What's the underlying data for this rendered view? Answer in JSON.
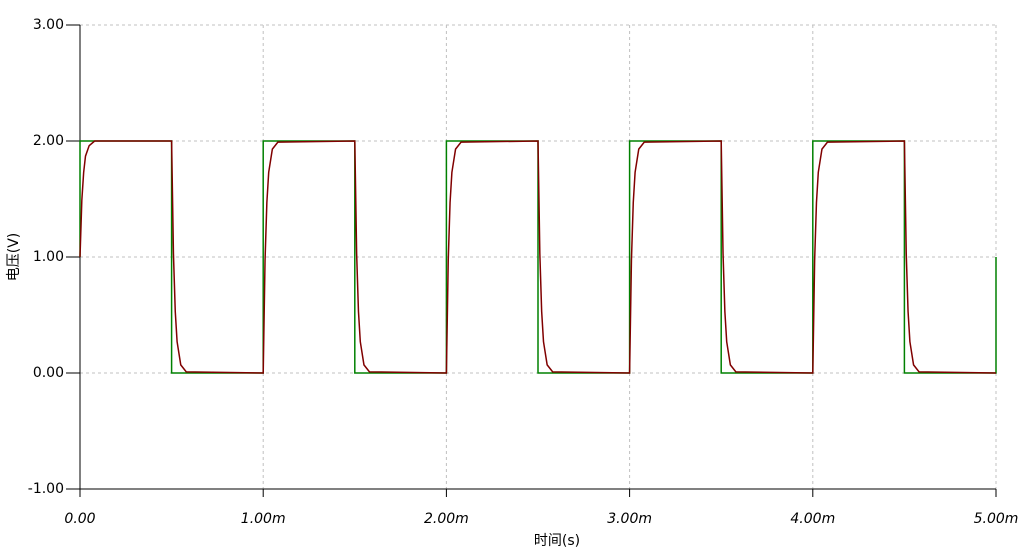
{
  "chart_data": {
    "type": "line",
    "xlabel": "时间(s)",
    "ylabel": "电压(V)",
    "xlim": [
      0,
      0.005
    ],
    "ylim": [
      -1,
      3
    ],
    "xticks": [
      {
        "value": 0,
        "label": "0.00"
      },
      {
        "value": 0.001,
        "label": "1.00m"
      },
      {
        "value": 0.002,
        "label": "2.00m"
      },
      {
        "value": 0.003,
        "label": "3.00m"
      },
      {
        "value": 0.004,
        "label": "4.00m"
      },
      {
        "value": 0.005,
        "label": "5.00m"
      }
    ],
    "yticks": [
      {
        "value": -1,
        "label": "-1.00"
      },
      {
        "value": 0,
        "label": "0.00"
      },
      {
        "value": 1,
        "label": "1.00"
      },
      {
        "value": 2,
        "label": "2.00"
      },
      {
        "value": 3,
        "label": "3.00"
      }
    ],
    "grid": true,
    "series": [
      {
        "color": "#008000",
        "x": [
          0,
          0,
          0.0005,
          0.0005,
          0.001,
          0.001,
          0.0015,
          0.0015,
          0.002,
          0.002,
          0.0025,
          0.0025,
          0.003,
          0.003,
          0.0035,
          0.0035,
          0.004,
          0.004,
          0.0045,
          0.0045,
          0.005,
          0.005
        ],
        "values": [
          1,
          2,
          2,
          0,
          0,
          2,
          2,
          0,
          0,
          2,
          2,
          0,
          0,
          2,
          2,
          0,
          0,
          2,
          2,
          0,
          0,
          1
        ]
      },
      {
        "color": "#800000",
        "x": [
          0,
          1e-05,
          2e-05,
          3e-05,
          5e-05,
          8e-05,
          0.0005,
          0.00051,
          0.00052,
          0.00053,
          0.00055,
          0.00058,
          0.001,
          0.00101,
          0.00102,
          0.00103,
          0.00105,
          0.00108,
          0.0015,
          0.00151,
          0.00152,
          0.00153,
          0.00155,
          0.00158,
          0.002,
          0.00201,
          0.00202,
          0.00203,
          0.00205,
          0.00208,
          0.0025,
          0.00251,
          0.00252,
          0.00253,
          0.00255,
          0.00258,
          0.003,
          0.00301,
          0.00302,
          0.00303,
          0.00305,
          0.00308,
          0.0035,
          0.00351,
          0.00352,
          0.00353,
          0.00355,
          0.00358,
          0.004,
          0.00401,
          0.00402,
          0.00403,
          0.00405,
          0.00408,
          0.0045,
          0.00451,
          0.00452,
          0.00453,
          0.00455,
          0.00458,
          0.005
        ],
        "values": [
          1,
          1.49,
          1.73,
          1.87,
          1.96,
          2,
          2,
          1.03,
          0.53,
          0.27,
          0.07,
          0.01,
          0,
          0.97,
          1.47,
          1.73,
          1.93,
          1.99,
          2,
          1.03,
          0.53,
          0.27,
          0.07,
          0.01,
          0,
          0.97,
          1.47,
          1.73,
          1.93,
          1.99,
          2,
          1.03,
          0.53,
          0.27,
          0.07,
          0.01,
          0,
          0.97,
          1.47,
          1.73,
          1.93,
          1.99,
          2,
          1.03,
          0.53,
          0.27,
          0.07,
          0.01,
          0,
          0.97,
          1.47,
          1.73,
          1.93,
          1.99,
          2,
          1.03,
          0.53,
          0.27,
          0.07,
          0.01,
          0
        ]
      }
    ]
  }
}
